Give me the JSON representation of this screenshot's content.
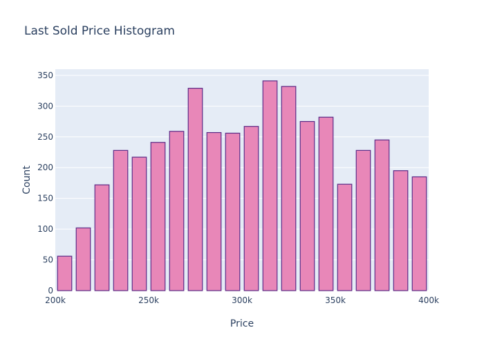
{
  "chart_data": {
    "type": "bar",
    "title": "Last Sold Price Histogram",
    "xlabel": "Price",
    "ylabel": "Count",
    "xlim": [
      200000,
      400000
    ],
    "ylim": [
      0,
      360
    ],
    "bin_width": 10000,
    "x_ticks": [
      {
        "value": 200000,
        "label": "200k"
      },
      {
        "value": 250000,
        "label": "250k"
      },
      {
        "value": 300000,
        "label": "300k"
      },
      {
        "value": 350000,
        "label": "350k"
      },
      {
        "value": 400000,
        "label": "400k"
      }
    ],
    "y_ticks": [
      0,
      50,
      100,
      150,
      200,
      250,
      300,
      350
    ],
    "bins": [
      {
        "start": 200000,
        "value": 56
      },
      {
        "start": 210000,
        "value": 102
      },
      {
        "start": 220000,
        "value": 172
      },
      {
        "start": 230000,
        "value": 228
      },
      {
        "start": 240000,
        "value": 217
      },
      {
        "start": 250000,
        "value": 241
      },
      {
        "start": 260000,
        "value": 259
      },
      {
        "start": 270000,
        "value": 329
      },
      {
        "start": 280000,
        "value": 257
      },
      {
        "start": 290000,
        "value": 256
      },
      {
        "start": 300000,
        "value": 267
      },
      {
        "start": 310000,
        "value": 341
      },
      {
        "start": 320000,
        "value": 332
      },
      {
        "start": 330000,
        "value": 275
      },
      {
        "start": 340000,
        "value": 282
      },
      {
        "start": 350000,
        "value": 173
      },
      {
        "start": 360000,
        "value": 228
      },
      {
        "start": 370000,
        "value": 245
      },
      {
        "start": 380000,
        "value": 195
      },
      {
        "start": 390000,
        "value": 185
      }
    ],
    "grid": true,
    "colors": {
      "bar_fill": "#e887b8",
      "bar_edge": "#5b2a86",
      "plot_bg": "#e5ecf6",
      "grid": "#ffffff",
      "text": "#2a3f5f"
    }
  }
}
